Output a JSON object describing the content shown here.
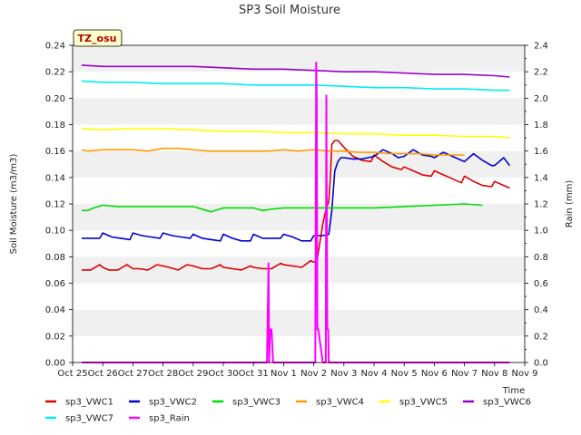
{
  "chart_data": {
    "type": "line",
    "title": "SP3 Soil Moisture",
    "xlabel": "Time",
    "ylabel": "Soil Moisture (m3/m3)",
    "y2label": "Rain (mm)",
    "badge": "TZ_osu",
    "xlim": [
      0,
      15
    ],
    "ylim": [
      0.0,
      0.24
    ],
    "y2lim": [
      0.0,
      2.4
    ],
    "x_ticks": [
      {
        "x": 0,
        "label": "Oct 25"
      },
      {
        "x": 1,
        "label": "Oct 26"
      },
      {
        "x": 2,
        "label": "Oct 27"
      },
      {
        "x": 3,
        "label": "Oct 28"
      },
      {
        "x": 4,
        "label": "Oct 29"
      },
      {
        "x": 5,
        "label": "Oct 30"
      },
      {
        "x": 6,
        "label": "Oct 31"
      },
      {
        "x": 7,
        "label": "Nov 1"
      },
      {
        "x": 8,
        "label": "Nov 2"
      },
      {
        "x": 9,
        "label": "Nov 3"
      },
      {
        "x": 10,
        "label": "Nov 4"
      },
      {
        "x": 11,
        "label": "Nov 5"
      },
      {
        "x": 12,
        "label": "Nov 6"
      },
      {
        "x": 13,
        "label": "Nov 7"
      },
      {
        "x": 14,
        "label": "Nov 8"
      },
      {
        "x": 15,
        "label": "Nov 9"
      }
    ],
    "y_ticks": [
      "0.00",
      "0.02",
      "0.04",
      "0.06",
      "0.08",
      "0.10",
      "0.12",
      "0.14",
      "0.16",
      "0.18",
      "0.20",
      "0.22",
      "0.24"
    ],
    "y2_ticks": [
      "0.0",
      "0.2",
      "0.4",
      "0.6",
      "0.8",
      "1.0",
      "1.2",
      "1.4",
      "1.6",
      "1.8",
      "2.0",
      "2.2",
      "2.4"
    ],
    "series": [
      {
        "name": "sp3_VWC1",
        "color": "#dd0000",
        "axis": "left",
        "x": [
          0.3,
          0.6,
          0.9,
          1.0,
          1.2,
          1.5,
          1.8,
          2.0,
          2.2,
          2.5,
          2.8,
          3.0,
          3.2,
          3.5,
          3.8,
          4.0,
          4.3,
          4.6,
          4.9,
          5.0,
          5.3,
          5.6,
          5.9,
          6.0,
          6.3,
          6.6,
          6.9,
          7.0,
          7.3,
          7.6,
          7.9,
          8.0,
          8.1,
          8.2,
          8.3,
          8.4,
          8.5,
          8.55,
          8.6,
          8.7,
          8.8,
          9.0,
          9.3,
          9.6,
          9.9,
          10.0,
          10.3,
          10.6,
          10.9,
          11.0,
          11.3,
          11.6,
          11.9,
          12.0,
          12.3,
          12.6,
          12.9,
          13.0,
          13.3,
          13.6,
          13.9,
          14.0,
          14.3,
          14.5
        ],
        "y": [
          0.07,
          0.07,
          0.074,
          0.072,
          0.07,
          0.07,
          0.074,
          0.071,
          0.071,
          0.07,
          0.074,
          0.073,
          0.072,
          0.07,
          0.074,
          0.073,
          0.071,
          0.071,
          0.074,
          0.072,
          0.071,
          0.07,
          0.073,
          0.072,
          0.071,
          0.071,
          0.075,
          0.074,
          0.073,
          0.072,
          0.077,
          0.076,
          0.076,
          0.09,
          0.105,
          0.115,
          0.122,
          0.14,
          0.165,
          0.168,
          0.168,
          0.163,
          0.156,
          0.153,
          0.152,
          0.157,
          0.152,
          0.148,
          0.146,
          0.148,
          0.145,
          0.142,
          0.141,
          0.145,
          0.142,
          0.139,
          0.136,
          0.141,
          0.137,
          0.134,
          0.133,
          0.137,
          0.134,
          0.132
        ]
      },
      {
        "name": "sp3_VWC2",
        "color": "#0000cc",
        "axis": "left",
        "x": [
          0.3,
          0.6,
          0.9,
          1.0,
          1.3,
          1.6,
          1.9,
          2.0,
          2.3,
          2.6,
          2.9,
          3.0,
          3.3,
          3.6,
          3.9,
          4.0,
          4.3,
          4.6,
          4.9,
          5.0,
          5.3,
          5.6,
          5.9,
          6.0,
          6.3,
          6.6,
          6.9,
          7.0,
          7.3,
          7.6,
          7.9,
          8.0,
          8.3,
          8.5,
          8.6,
          8.7,
          8.8,
          8.9,
          9.0,
          9.3,
          9.6,
          9.8,
          10.0,
          10.3,
          10.6,
          10.8,
          11.0,
          11.3,
          11.6,
          11.9,
          12.0,
          12.3,
          12.6,
          12.9,
          13.0,
          13.3,
          13.6,
          13.9,
          14.0,
          14.3,
          14.5
        ],
        "y": [
          0.094,
          0.094,
          0.094,
          0.098,
          0.095,
          0.094,
          0.093,
          0.098,
          0.096,
          0.095,
          0.094,
          0.098,
          0.096,
          0.095,
          0.094,
          0.097,
          0.094,
          0.093,
          0.092,
          0.097,
          0.094,
          0.092,
          0.092,
          0.097,
          0.094,
          0.094,
          0.094,
          0.097,
          0.095,
          0.092,
          0.092,
          0.096,
          0.096,
          0.097,
          0.115,
          0.145,
          0.152,
          0.155,
          0.155,
          0.154,
          0.154,
          0.155,
          0.156,
          0.161,
          0.158,
          0.155,
          0.156,
          0.161,
          0.157,
          0.156,
          0.155,
          0.159,
          0.156,
          0.153,
          0.152,
          0.158,
          0.153,
          0.149,
          0.149,
          0.155,
          0.149
        ]
      },
      {
        "name": "sp3_VWC3",
        "color": "#00dd00",
        "axis": "left",
        "x": [
          0.3,
          0.5,
          0.7,
          1.0,
          1.5,
          2.0,
          3.0,
          4.0,
          4.3,
          4.6,
          5.0,
          6.0,
          6.3,
          6.6,
          7.0,
          8.0,
          9.0,
          10.0,
          11.0,
          12.0,
          13.0,
          13.6
        ],
        "y": [
          0.115,
          0.115,
          0.117,
          0.119,
          0.118,
          0.118,
          0.118,
          0.118,
          0.116,
          0.114,
          0.117,
          0.117,
          0.115,
          0.116,
          0.117,
          0.117,
          0.117,
          0.117,
          0.118,
          0.119,
          0.12,
          0.119
        ]
      },
      {
        "name": "sp3_VWC4",
        "color": "#ff9900",
        "axis": "left",
        "x": [
          0.3,
          0.5,
          1.0,
          1.5,
          2.0,
          2.5,
          3.0,
          3.5,
          4.0,
          4.5,
          5.0,
          5.5,
          6.0,
          6.5,
          7.0,
          7.5,
          8.0,
          8.5,
          9.0,
          9.5,
          10.0,
          10.5,
          11.0,
          11.5,
          12.0,
          12.5,
          13.0
        ],
        "y": [
          0.161,
          0.16,
          0.161,
          0.161,
          0.161,
          0.16,
          0.162,
          0.162,
          0.161,
          0.16,
          0.16,
          0.16,
          0.16,
          0.16,
          0.161,
          0.16,
          0.161,
          0.16,
          0.16,
          0.159,
          0.159,
          0.158,
          0.158,
          0.158,
          0.157,
          0.157,
          0.157
        ]
      },
      {
        "name": "sp3_VWC5",
        "color": "#ffff00",
        "axis": "left",
        "x": [
          0.3,
          1.0,
          2.0,
          3.0,
          4.0,
          5.0,
          6.0,
          7.0,
          8.0,
          9.0,
          10.0,
          11.0,
          12.0,
          13.0,
          14.0,
          14.5
        ],
        "y": [
          0.177,
          0.176,
          0.177,
          0.177,
          0.176,
          0.175,
          0.175,
          0.174,
          0.174,
          0.173,
          0.173,
          0.172,
          0.172,
          0.171,
          0.171,
          0.17
        ]
      },
      {
        "name": "sp3_VWC6",
        "color": "#9900cc",
        "axis": "left",
        "x": [
          0.3,
          1.0,
          2.0,
          3.0,
          4.0,
          5.0,
          6.0,
          7.0,
          8.0,
          9.0,
          10.0,
          11.0,
          12.0,
          13.0,
          14.0,
          14.5
        ],
        "y": [
          0.225,
          0.224,
          0.224,
          0.224,
          0.224,
          0.223,
          0.222,
          0.222,
          0.221,
          0.22,
          0.22,
          0.219,
          0.218,
          0.218,
          0.217,
          0.216
        ]
      },
      {
        "name": "sp3_VWC7",
        "color": "#00eeee",
        "axis": "left",
        "x": [
          0.3,
          1.0,
          2.0,
          3.0,
          4.0,
          5.0,
          6.0,
          7.0,
          8.0,
          9.0,
          10.0,
          11.0,
          12.0,
          13.0,
          14.0,
          14.5
        ],
        "y": [
          0.213,
          0.212,
          0.212,
          0.211,
          0.211,
          0.211,
          0.21,
          0.21,
          0.21,
          0.209,
          0.208,
          0.208,
          0.207,
          0.207,
          0.206,
          0.206
        ]
      },
      {
        "name": "sp3_Rain",
        "color": "#ff00ff",
        "axis": "right",
        "x": [
          0.3,
          6.45,
          6.5,
          6.52,
          6.55,
          6.6,
          6.65,
          8.05,
          8.08,
          8.1,
          8.12,
          8.15,
          8.3,
          8.4,
          8.42,
          8.45,
          8.48,
          8.5,
          8.52,
          14.5
        ],
        "y": [
          0.0,
          0.0,
          0.75,
          0.0,
          0.25,
          0.25,
          0.0,
          0.0,
          2.27,
          2.0,
          0.25,
          0.25,
          0.0,
          0.0,
          2.02,
          0.25,
          0.25,
          0.0,
          0.0,
          0.0
        ]
      }
    ]
  }
}
